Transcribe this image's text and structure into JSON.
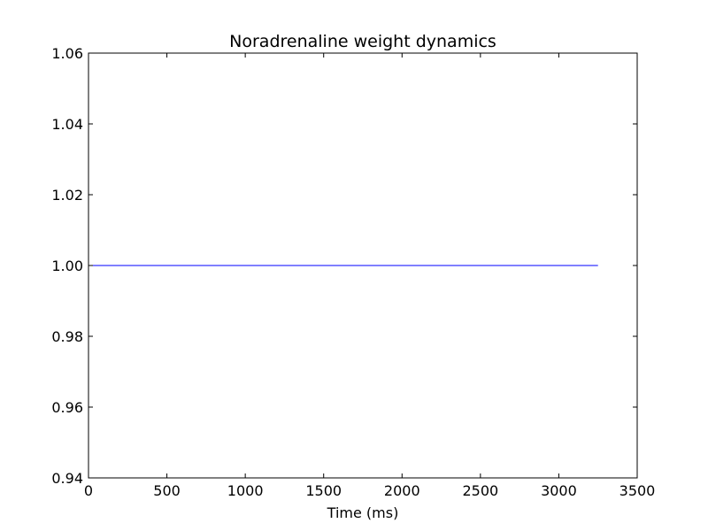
{
  "chart_data": {
    "type": "line",
    "title": "Noradrenaline weight dynamics",
    "xlabel": "Time (ms)",
    "ylabel": "",
    "xlim": [
      0,
      3500
    ],
    "ylim": [
      0.94,
      1.06
    ],
    "xticks": [
      0,
      500,
      1000,
      1500,
      2000,
      2500,
      3000,
      3500
    ],
    "xtick_labels": [
      "0",
      "500",
      "1000",
      "1500",
      "2000",
      "2500",
      "3000",
      "3500"
    ],
    "yticks": [
      0.94,
      0.96,
      0.98,
      1.0,
      1.02,
      1.04,
      1.06
    ],
    "ytick_labels": [
      "0.94",
      "0.96",
      "0.98",
      "1.00",
      "1.02",
      "1.04",
      "1.06"
    ],
    "grid": false,
    "series": [
      {
        "color": "#0000ff",
        "x": [
          0,
          3250
        ],
        "y": [
          1.0,
          1.0
        ]
      }
    ]
  }
}
